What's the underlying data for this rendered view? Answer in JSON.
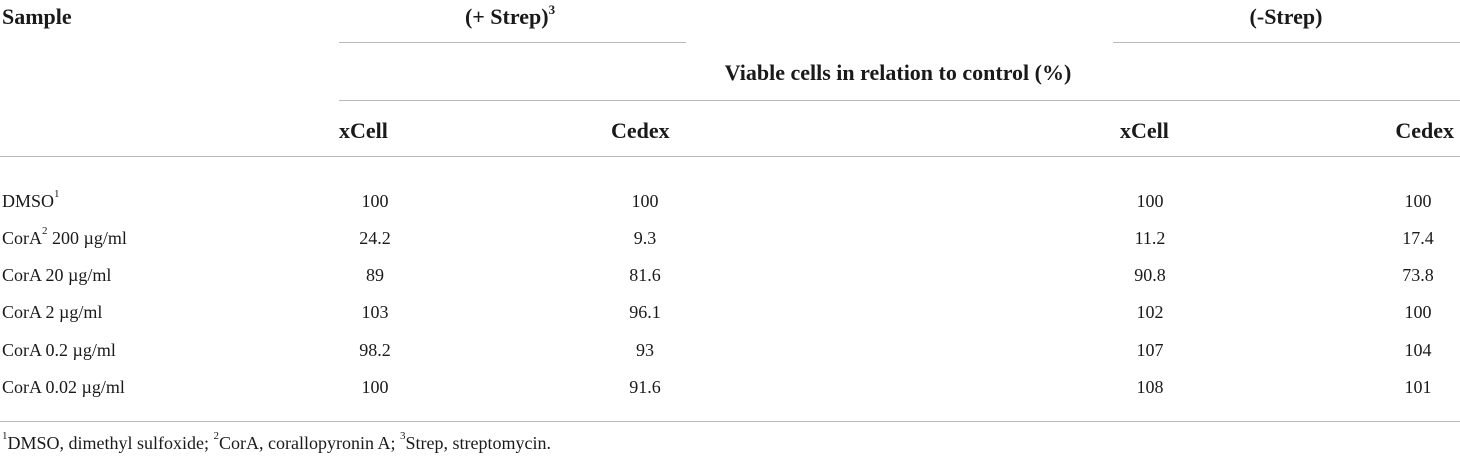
{
  "table": {
    "headers": {
      "sample": "Sample",
      "group_plus_strep": "(+ Strep)",
      "group_plus_strep_sup": "3",
      "group_minus_strep": "(-Strep)",
      "measure": "Viable cells in relation to control (%)",
      "col_xcell": "xCell",
      "col_cedex": "Cedex"
    },
    "rows": [
      {
        "sample": "DMSO",
        "sup": "1",
        "suffix": "",
        "plus_xcell": "100",
        "plus_cedex": "100",
        "minus_xcell": "100",
        "minus_cedex": "100"
      },
      {
        "sample": "CorA",
        "sup": "2",
        "suffix": " 200 µg/ml",
        "plus_xcell": "24.2",
        "plus_cedex": "9.3",
        "minus_xcell": "11.2",
        "minus_cedex": "17.4"
      },
      {
        "sample": "CorA 20 µg/ml",
        "sup": "",
        "suffix": "",
        "plus_xcell": "89",
        "plus_cedex": "81.6",
        "minus_xcell": "90.8",
        "minus_cedex": "73.8"
      },
      {
        "sample": "CorA 2 µg/ml",
        "sup": "",
        "suffix": "",
        "plus_xcell": "103",
        "plus_cedex": "96.1",
        "minus_xcell": "102",
        "minus_cedex": "100"
      },
      {
        "sample": "CorA 0.2 µg/ml",
        "sup": "",
        "suffix": "",
        "plus_xcell": "98.2",
        "plus_cedex": "93",
        "minus_xcell": "107",
        "minus_cedex": "104"
      },
      {
        "sample": "CorA 0.02 µg/ml",
        "sup": "",
        "suffix": "",
        "plus_xcell": "100",
        "plus_cedex": "91.6",
        "minus_xcell": "108",
        "minus_cedex": "101"
      }
    ],
    "footnote": {
      "sup1": "1",
      "text1": "DMSO, dimethyl sulfoxide; ",
      "sup2": "2",
      "text2": "CorA, corallopyronin A; ",
      "sup3": "3",
      "text3": "Strep, streptomycin."
    }
  }
}
